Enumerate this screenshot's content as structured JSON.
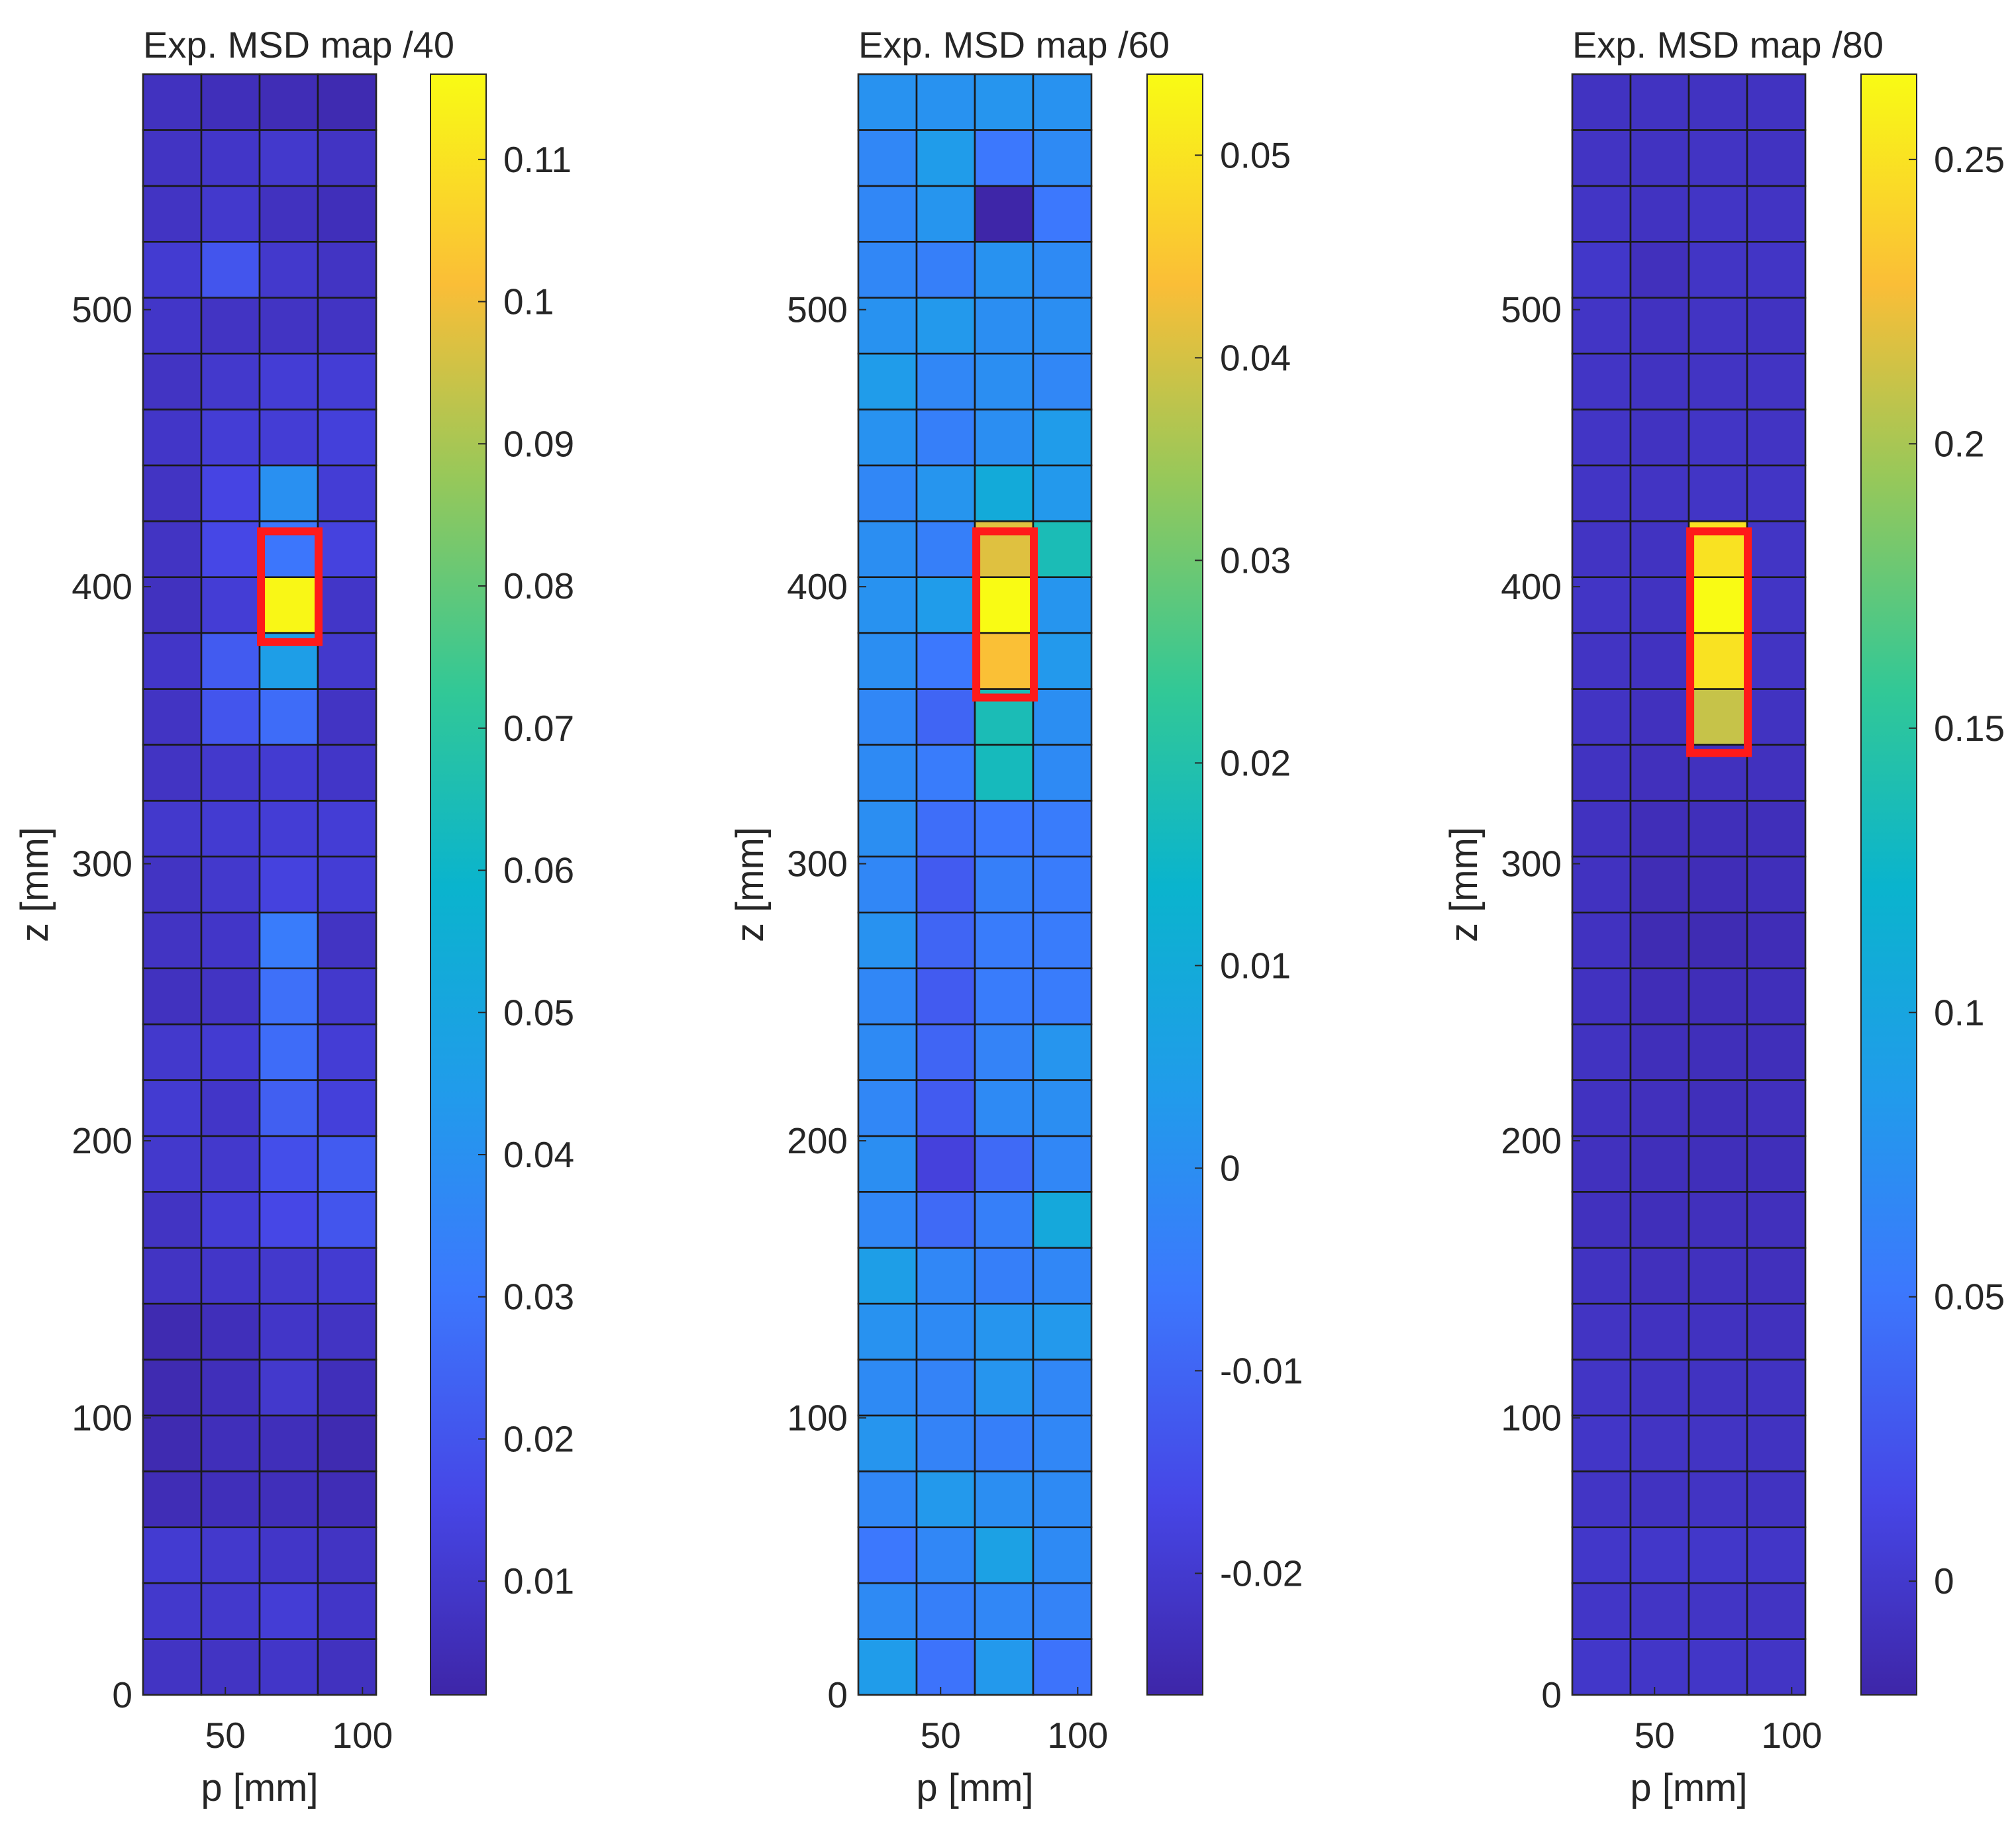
{
  "chart_data": [
    {
      "type": "heatmap",
      "title": "Exp. MSD map /40",
      "xlabel": "p [mm]",
      "ylabel": "z [mm]",
      "x_ticks": [
        50,
        100
      ],
      "y_ticks": [
        0,
        100,
        200,
        300,
        400,
        500
      ],
      "xlim": [
        20,
        105
      ],
      "ylim": [
        0,
        585
      ],
      "colorbar_range": [
        0.002,
        0.116
      ],
      "colorbar_ticks": [
        0.01,
        0.02,
        0.03,
        0.04,
        0.05,
        0.06,
        0.07,
        0.08,
        0.09,
        0.1,
        0.11
      ],
      "colorbar_tick_labels": [
        "0.01",
        "0.02",
        "0.03",
        "0.04",
        "0.05",
        "0.06",
        "0.07",
        "0.08",
        "0.09",
        "0.1",
        "0.11"
      ],
      "columns_p": [
        31,
        52,
        73,
        94
      ],
      "rows_z": [
        10,
        30,
        50,
        70,
        90,
        110,
        130,
        150,
        170,
        190,
        210,
        230,
        250,
        270,
        290,
        310,
        330,
        350,
        370,
        390,
        410,
        430,
        450,
        470,
        490,
        510,
        530,
        550,
        570
      ],
      "values": [
        [
          0.008,
          0.008,
          0.009,
          0.007
        ],
        [
          0.01,
          0.01,
          0.012,
          0.009
        ],
        [
          0.011,
          0.01,
          0.009,
          0.008
        ],
        [
          0.005,
          0.006,
          0.006,
          0.005
        ],
        [
          0.004,
          0.006,
          0.006,
          0.004
        ],
        [
          0.004,
          0.006,
          0.01,
          0.006
        ],
        [
          0.004,
          0.006,
          0.009,
          0.008
        ],
        [
          0.008,
          0.009,
          0.01,
          0.011
        ],
        [
          0.008,
          0.012,
          0.016,
          0.02
        ],
        [
          0.01,
          0.01,
          0.018,
          0.022
        ],
        [
          0.011,
          0.009,
          0.023,
          0.013
        ],
        [
          0.01,
          0.011,
          0.027,
          0.012
        ],
        [
          0.007,
          0.008,
          0.028,
          0.01
        ],
        [
          0.008,
          0.009,
          0.032,
          0.008
        ],
        [
          0.008,
          0.01,
          0.014,
          0.012
        ],
        [
          0.01,
          0.011,
          0.012,
          0.012
        ],
        [
          0.008,
          0.01,
          0.011,
          0.009
        ],
        [
          0.008,
          0.02,
          0.027,
          0.008
        ],
        [
          0.009,
          0.022,
          0.046,
          0.01
        ],
        [
          0.007,
          0.012,
          0.115,
          0.009
        ],
        [
          0.008,
          0.016,
          0.03,
          0.014
        ],
        [
          0.008,
          0.015,
          0.04,
          0.012
        ],
        [
          0.009,
          0.012,
          0.012,
          0.013
        ],
        [
          0.008,
          0.01,
          0.012,
          0.012
        ],
        [
          0.009,
          0.008,
          0.008,
          0.008
        ],
        [
          0.011,
          0.02,
          0.01,
          0.008
        ],
        [
          0.008,
          0.01,
          0.007,
          0.006
        ],
        [
          0.008,
          0.009,
          0.01,
          0.008
        ],
        [
          0.007,
          0.006,
          0.005,
          0.004
        ]
      ],
      "highlight_box": {
        "p_range": [
          63,
          84
        ],
        "z_range": [
          380,
          420
        ]
      }
    },
    {
      "type": "heatmap",
      "title": "Exp. MSD map /60",
      "xlabel": "p [mm]",
      "ylabel": "z [mm]",
      "x_ticks": [
        50,
        100
      ],
      "y_ticks": [
        0,
        100,
        200,
        300,
        400,
        500
      ],
      "xlim": [
        20,
        105
      ],
      "ylim": [
        0,
        585
      ],
      "colorbar_range": [
        -0.026,
        0.054
      ],
      "colorbar_ticks": [
        -0.02,
        -0.01,
        0,
        0.01,
        0.02,
        0.03,
        0.04,
        0.05
      ],
      "colorbar_tick_labels": [
        "-0.02",
        "-0.01",
        "0",
        "0.01",
        "0.02",
        "0.03",
        "0.04",
        "0.05"
      ],
      "columns_p": [
        31,
        52,
        73,
        94
      ],
      "rows_z": [
        10,
        30,
        50,
        70,
        90,
        110,
        130,
        150,
        170,
        190,
        210,
        230,
        250,
        270,
        290,
        310,
        330,
        350,
        370,
        390,
        410,
        430,
        450,
        470,
        490,
        510,
        530,
        550,
        570
      ],
      "values": [
        [
          0.004,
          -0.007,
          0.003,
          -0.007
        ],
        [
          -0.001,
          -0.004,
          -0.002,
          -0.003
        ],
        [
          -0.006,
          -0.002,
          0.006,
          -0.001
        ],
        [
          -0.002,
          0.003,
          0.0,
          -0.001
        ],
        [
          0.002,
          -0.003,
          -0.004,
          -0.002
        ],
        [
          -0.001,
          -0.003,
          0.002,
          -0.002
        ],
        [
          0.001,
          -0.001,
          0.002,
          0.003
        ],
        [
          0.005,
          -0.002,
          -0.004,
          -0.002
        ],
        [
          -0.002,
          -0.009,
          -0.004,
          0.009
        ],
        [
          0.0,
          -0.018,
          -0.009,
          -0.002
        ],
        [
          -0.002,
          -0.012,
          -0.001,
          0.0
        ],
        [
          -0.001,
          -0.01,
          -0.003,
          0.002
        ],
        [
          -0.002,
          -0.012,
          -0.005,
          -0.005
        ],
        [
          0.001,
          -0.01,
          -0.005,
          -0.005
        ],
        [
          -0.002,
          -0.012,
          -0.004,
          -0.005
        ],
        [
          0.0,
          -0.008,
          -0.006,
          -0.005
        ],
        [
          -0.001,
          -0.005,
          0.017,
          -0.001
        ],
        [
          -0.002,
          -0.01,
          0.018,
          0.0
        ],
        [
          0.0,
          -0.006,
          0.044,
          0.003
        ],
        [
          0.001,
          0.004,
          0.054,
          0.002
        ],
        [
          0.0,
          -0.004,
          0.041,
          0.018
        ],
        [
          -0.002,
          0.002,
          0.01,
          0.003
        ],
        [
          0.001,
          -0.004,
          0.0,
          0.004
        ],
        [
          0.004,
          -0.002,
          0.0,
          -0.002
        ],
        [
          0.001,
          0.003,
          0.0,
          0.0
        ],
        [
          -0.002,
          -0.004,
          0.001,
          -0.001
        ],
        [
          -0.002,
          0.002,
          -0.026,
          -0.006
        ],
        [
          -0.002,
          0.004,
          -0.006,
          -0.001
        ],
        [
          0.001,
          0.001,
          0.002,
          0.001
        ]
      ],
      "highlight_box": {
        "p_range": [
          63,
          84
        ],
        "z_range": [
          360,
          420
        ]
      }
    },
    {
      "type": "heatmap",
      "title": "Exp. MSD map /80",
      "xlabel": "p [mm]",
      "ylabel": "z [mm]",
      "x_ticks": [
        50,
        100
      ],
      "y_ticks": [
        0,
        100,
        200,
        300,
        400,
        500
      ],
      "xlim": [
        20,
        105
      ],
      "ylim": [
        0,
        585
      ],
      "colorbar_range": [
        -0.02,
        0.265
      ],
      "colorbar_ticks": [
        0,
        0.05,
        0.1,
        0.15,
        0.2,
        0.25
      ],
      "colorbar_tick_labels": [
        "0",
        "0.05",
        "0.1",
        "0.15",
        "0.2",
        "0.25"
      ],
      "columns_p": [
        31,
        52,
        73,
        94
      ],
      "rows_z": [
        10,
        30,
        50,
        70,
        90,
        110,
        130,
        150,
        170,
        190,
        210,
        230,
        250,
        270,
        290,
        310,
        330,
        350,
        370,
        390,
        410,
        430,
        450,
        470,
        490,
        510,
        530,
        550,
        570
      ],
      "values": [
        [
          -0.002,
          -0.003,
          -0.003,
          -0.004
        ],
        [
          -0.003,
          -0.004,
          -0.004,
          -0.005
        ],
        [
          -0.002,
          -0.002,
          -0.002,
          -0.003
        ],
        [
          -0.004,
          -0.006,
          -0.005,
          -0.006
        ],
        [
          -0.003,
          -0.005,
          -0.005,
          -0.006
        ],
        [
          -0.004,
          -0.006,
          -0.006,
          -0.006
        ],
        [
          -0.005,
          -0.007,
          -0.007,
          -0.008
        ],
        [
          -0.006,
          -0.009,
          -0.008,
          -0.009
        ],
        [
          -0.008,
          -0.01,
          -0.009,
          -0.009
        ],
        [
          -0.008,
          -0.01,
          -0.01,
          -0.01
        ],
        [
          -0.007,
          -0.009,
          -0.01,
          -0.009
        ],
        [
          -0.006,
          -0.01,
          -0.01,
          -0.01
        ],
        [
          -0.007,
          -0.012,
          -0.011,
          -0.01
        ],
        [
          -0.007,
          -0.014,
          -0.014,
          -0.012
        ],
        [
          -0.007,
          -0.013,
          -0.012,
          -0.01
        ],
        [
          -0.007,
          -0.011,
          -0.01,
          -0.01
        ],
        [
          -0.006,
          -0.009,
          -0.008,
          -0.008
        ],
        [
          -0.005,
          -0.008,
          0.21,
          -0.006
        ],
        [
          -0.005,
          -0.007,
          0.25,
          -0.005
        ],
        [
          -0.004,
          -0.006,
          0.265,
          -0.004
        ],
        [
          -0.005,
          -0.006,
          0.25,
          -0.004
        ],
        [
          -0.004,
          -0.005,
          -0.004,
          -0.004
        ],
        [
          -0.004,
          -0.006,
          -0.004,
          -0.005
        ],
        [
          -0.004,
          -0.006,
          -0.005,
          -0.005
        ],
        [
          -0.004,
          -0.007,
          -0.005,
          -0.006
        ],
        [
          -0.002,
          -0.009,
          -0.004,
          -0.004
        ],
        [
          -0.004,
          -0.006,
          -0.004,
          -0.005
        ],
        [
          -0.005,
          -0.006,
          -0.005,
          -0.006
        ],
        [
          -0.006,
          -0.006,
          -0.006,
          -0.006
        ]
      ],
      "highlight_box": {
        "p_range": [
          63,
          84
        ],
        "z_range": [
          340,
          420
        ]
      }
    }
  ]
}
